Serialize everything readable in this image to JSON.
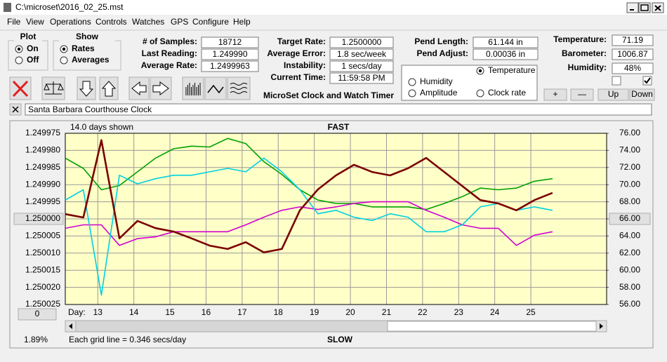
{
  "window": {
    "title": "C:\\microset\\2016_02_25.mst"
  },
  "menu": [
    "File",
    "View",
    "Operations",
    "Controls",
    "Watches",
    "GPS",
    "Configure",
    "Help"
  ],
  "plot": {
    "label": "Plot",
    "options": [
      "On",
      "Off"
    ]
  },
  "show": {
    "label": "Show",
    "options": [
      "Rates",
      "Averages"
    ]
  },
  "field_columns": [
    [
      {
        "label": "# of Samples:",
        "value": "18712"
      },
      {
        "label": "Last Reading:",
        "value": "1.249990"
      },
      {
        "label": "Average Rate:",
        "value": "1.2499963"
      }
    ],
    [
      {
        "label": "Target Rate:",
        "value": "1.2500000"
      },
      {
        "label": "Average Error:",
        "value": "1.8 sec/week"
      },
      {
        "label": "Instability:",
        "value": "1 secs/day"
      },
      {
        "label": "Current Time:",
        "value": "11:59:58 PM"
      }
    ],
    [
      {
        "label": "Pend Length:",
        "value": "61.144 in"
      },
      {
        "label": "Pend Adjust:",
        "value": "0.00036 in"
      }
    ],
    [
      {
        "label": "Temperature:",
        "value": "71.19"
      },
      {
        "label": "Barometer:",
        "value": "1006.87"
      },
      {
        "label": "Humidity:",
        "value": "48%"
      }
    ]
  ],
  "app_title": "MicroSet Clock and Watch Timer",
  "buttons": [
    "+",
    "—",
    "Up",
    "Down"
  ],
  "clock_name": "Santa Barbara Courthouse Clock",
  "chart_data": {
    "type": "line",
    "days_shown": "14.0 days shown",
    "top_label": "FAST",
    "bottom_label": "SLOW",
    "x_label": "Day:",
    "offset_button": "0",
    "percent": "1.89%",
    "grid_note": "Each grid line = 0.346 secs/day",
    "grid": true,
    "xlim": [
      12.1,
      27.1
    ],
    "xticks": [
      13,
      14,
      15,
      16,
      17,
      18,
      19,
      20,
      21,
      22,
      23,
      24,
      25
    ],
    "ylim": [
      1.250025,
      1.249975
    ],
    "yticks": [
      1.249975,
      {
        "value": 1.24998,
        "label": "1.249980"
      },
      1.249985,
      {
        "value": 1.24999,
        "label": "1.249990"
      },
      1.249995,
      {
        "value": 1.25,
        "label": "1.250000"
      },
      1.250005,
      {
        "value": 1.25001,
        "label": "1.250010"
      },
      1.250015,
      {
        "value": 1.25002,
        "label": "1.250020"
      },
      1.250025
    ],
    "y2lim": [
      56,
      76
    ],
    "y2ticks": [
      {
        "value": 76,
        "label": "76.00"
      },
      {
        "value": 74,
        "label": "74.00"
      },
      {
        "value": 72,
        "label": "72.00"
      },
      {
        "value": 70,
        "label": "70.00"
      },
      {
        "value": 68,
        "label": "68.00"
      },
      {
        "value": 66,
        "label": "66.00"
      },
      {
        "value": 64,
        "label": "64.00"
      },
      {
        "value": 62,
        "label": "62.00"
      },
      {
        "value": 60,
        "label": "60.00"
      },
      {
        "value": 58,
        "label": "58.00"
      },
      {
        "value": 56,
        "label": "56.00"
      }
    ],
    "x": [
      12.1,
      12.6,
      13.1,
      13.6,
      14.1,
      14.6,
      15.1,
      15.6,
      16.1,
      16.6,
      17.1,
      17.6,
      18.1,
      18.6,
      19.1,
      19.6,
      20.1,
      20.6,
      21.1,
      21.6,
      22.1,
      22.6,
      23.1,
      23.6,
      24.1,
      24.6,
      25.1,
      25.6
    ],
    "series": [
      {
        "name": "Temperature",
        "color": "#00a000",
        "axis": "y2",
        "values": [
          73.1,
          71.9,
          69.4,
          69.9,
          71.5,
          73.1,
          74.2,
          74.5,
          74.4,
          75.4,
          74.8,
          72.7,
          71.2,
          69.4,
          68.2,
          67.8,
          67.8,
          67.4,
          67.4,
          67.4,
          67.1,
          67.8,
          68.6,
          69.6,
          69.4,
          69.6,
          70.4,
          70.7
        ]
      },
      {
        "name": "Humidity",
        "color": "#d000d0",
        "axis": "y2",
        "values": [
          64.9,
          65.3,
          65.3,
          62.9,
          63.7,
          63.9,
          64.5,
          64.5,
          64.5,
          64.5,
          65.3,
          66.2,
          67.0,
          67.4,
          67.1,
          67.4,
          67.8,
          68.0,
          68.0,
          68.0,
          67.0,
          66.2,
          65.3,
          64.9,
          64.9,
          62.9,
          64.1,
          64.5
        ]
      },
      {
        "name": "Amplitude",
        "color": "#00d0e0",
        "axis": "y2",
        "values": [
          68.2,
          69.4,
          57.1,
          71.1,
          70.1,
          70.7,
          71.1,
          71.1,
          71.5,
          71.9,
          71.5,
          73.1,
          71.5,
          69.4,
          66.6,
          67.0,
          66.2,
          65.8,
          66.6,
          66.2,
          64.5,
          64.5,
          65.3,
          67.4,
          67.8,
          67.0,
          67.4,
          67.0
        ]
      },
      {
        "name": "Clock rate",
        "color": "#7a0000",
        "values": [
          1.2499986,
          1.2499996,
          1.249977,
          1.2500057,
          1.2500006,
          1.2500027,
          1.2500037,
          1.2500057,
          1.2500078,
          1.2500088,
          1.2500068,
          1.2500098,
          1.2500088,
          1.2499975,
          1.2499914,
          1.2499873,
          1.2499842,
          1.2499863,
          1.2499873,
          1.2499852,
          1.2499822,
          1.2499863,
          1.2499904,
          1.2499945,
          1.2499955,
          1.2499975,
          1.2499945,
          1.2499924
        ]
      }
    ]
  }
}
